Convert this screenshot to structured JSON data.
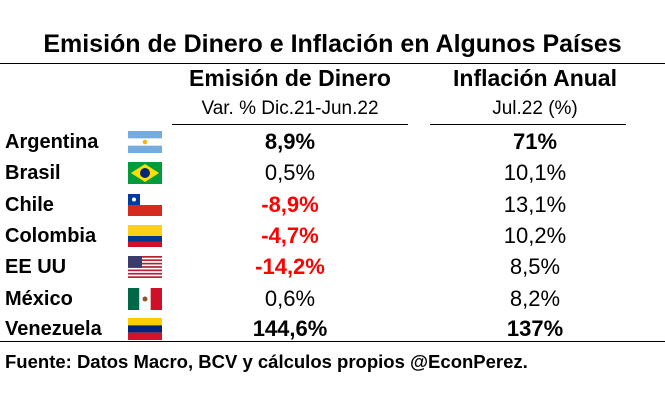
{
  "title": "Emisión de Dinero e Inflación en Algunos Países",
  "columns": [
    {
      "header": "Emisión de Dinero",
      "subheader": "Var. % Dic.21-Jun.22"
    },
    {
      "header": "Inflación Anual",
      "subheader": "Jul.22 (%)"
    }
  ],
  "rows": [
    {
      "country": "Argentina",
      "flag": "argentina-flag",
      "emision": "8,9%",
      "inflacion": "71%",
      "emision_style": "bold",
      "inflacion_style": "bold"
    },
    {
      "country": "Brasil",
      "flag": "brazil-flag",
      "emision": "0,5%",
      "inflacion": "10,1%",
      "emision_style": "normal",
      "inflacion_style": "normal"
    },
    {
      "country": "Chile",
      "flag": "chile-flag",
      "emision": "-8,9%",
      "inflacion": "13,1%",
      "emision_style": "red",
      "inflacion_style": "normal"
    },
    {
      "country": "Colombia",
      "flag": "colombia-flag",
      "emision": "-4,7%",
      "inflacion": "10,2%",
      "emision_style": "red",
      "inflacion_style": "normal"
    },
    {
      "country": "EE UU",
      "flag": "usa-flag",
      "emision": "-14,2%",
      "inflacion": "8,5%",
      "emision_style": "red",
      "inflacion_style": "normal"
    },
    {
      "country": "México",
      "flag": "mexico-flag",
      "emision": "0,6%",
      "inflacion": "8,2%",
      "emision_style": "normal",
      "inflacion_style": "normal"
    },
    {
      "country": "Venezuela",
      "flag": "venezuela-flag",
      "emision": "144,6%",
      "inflacion": "137%",
      "emision_style": "bold",
      "inflacion_style": "bold"
    }
  ],
  "source": "Fuente: Datos Macro, BCV y cálculos propios @EconPerez.",
  "colors": {
    "negative": "#ff0000",
    "text": "#000000"
  },
  "chart_data": {
    "type": "table",
    "title": "Emisión de Dinero e Inflación en Algunos Países",
    "columns": [
      "Emisión de Dinero (Var. % Dic.21-Jun.22)",
      "Inflación Anual (Jul.22 (%))"
    ],
    "categories": [
      "Argentina",
      "Brasil",
      "Chile",
      "Colombia",
      "EE UU",
      "México",
      "Venezuela"
    ],
    "series": [
      {
        "name": "Emisión de Dinero",
        "values": [
          8.9,
          0.5,
          -8.9,
          -4.7,
          -14.2,
          0.6,
          144.6
        ]
      },
      {
        "name": "Inflación Anual",
        "values": [
          71,
          10.1,
          13.1,
          10.2,
          8.5,
          8.2,
          137
        ]
      }
    ]
  }
}
